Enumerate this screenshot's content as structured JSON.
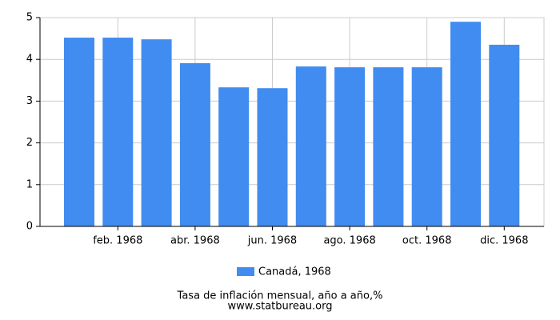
{
  "chart_data": {
    "type": "bar",
    "categories": [
      null,
      "feb. 1968",
      null,
      "abr. 1968",
      null,
      "jun. 1968",
      null,
      "ago. 1968",
      null,
      "oct. 1968",
      null,
      "dic. 1968"
    ],
    "series": [
      {
        "name": "Canadá, 1968",
        "color": "#418cf0",
        "values": [
          4.52,
          4.52,
          4.48,
          3.91,
          3.33,
          3.31,
          3.83,
          3.81,
          3.81,
          3.81,
          4.9,
          4.35
        ]
      }
    ],
    "ylim": [
      0,
      5
    ],
    "yticks": [
      0,
      1,
      2,
      3,
      4,
      5
    ],
    "grid": true,
    "xlabel": "Tasa de inflación mensual, año a año,%",
    "source": "www.statbureau.org"
  }
}
